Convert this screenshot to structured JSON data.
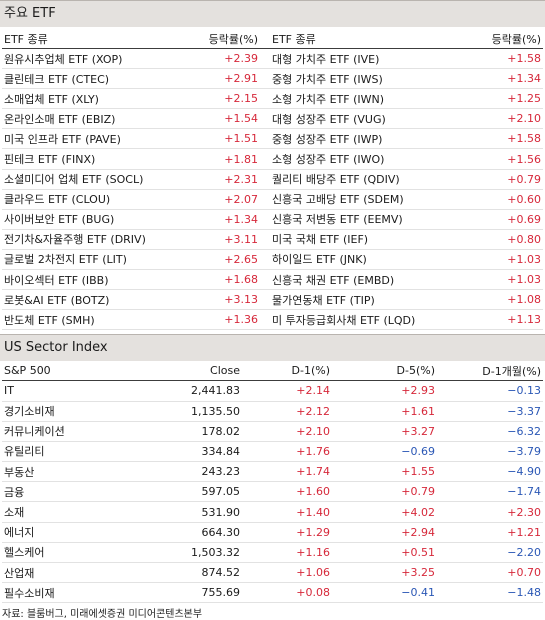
{
  "etf_section": {
    "title": "주요 ETF",
    "headers": {
      "name_left": "ETF 종류",
      "change_left": "등락률(%)",
      "name_right": "ETF 종류",
      "change_right": "등락률(%)"
    },
    "rows": [
      {
        "left_name": "원유시추업체 ETF (XOP)",
        "left_change": "+2.39",
        "right_name": "대형 가치주 ETF (IVE)",
        "right_change": "+1.58"
      },
      {
        "left_name": "클린테크 ETF (CTEC)",
        "left_change": "+2.91",
        "right_name": "중형 가치주 ETF (IWS)",
        "right_change": "+1.34"
      },
      {
        "left_name": "소매업체 ETF (XLY)",
        "left_change": "+2.15",
        "right_name": "소형 가치주 ETF (IWN)",
        "right_change": "+1.25"
      },
      {
        "left_name": "온라인소매 ETF (EBIZ)",
        "left_change": "+1.54",
        "right_name": "대형 성장주 ETF (VUG)",
        "right_change": "+2.10"
      },
      {
        "left_name": "미국 인프라 ETF (PAVE)",
        "left_change": "+1.51",
        "right_name": "중형 성장주 ETF (IWP)",
        "right_change": "+1.58"
      },
      {
        "left_name": "핀테크 ETF (FINX)",
        "left_change": "+1.81",
        "right_name": "소형 성장주 ETF (IWO)",
        "right_change": "+1.56"
      },
      {
        "left_name": "소셜미디어 업체 ETF (SOCL)",
        "left_change": "+2.31",
        "right_name": "퀄리티 배당주 ETF (QDIV)",
        "right_change": "+0.79"
      },
      {
        "left_name": "클라우드 ETF (CLOU)",
        "left_change": "+2.07",
        "right_name": "신흥국 고배당 ETF (SDEM)",
        "right_change": "+0.60"
      },
      {
        "left_name": "사이버보안 ETF (BUG)",
        "left_change": "+1.34",
        "right_name": "신흥국 저변동 ETF (EEMV)",
        "right_change": "+0.69"
      },
      {
        "left_name": "전기차&자율주행 ETF (DRIV)",
        "left_change": "+3.11",
        "right_name": "미국 국채 ETF (IEF)",
        "right_change": "+0.80"
      },
      {
        "left_name": "글로벌 2차전지 ETF (LIT)",
        "left_change": "+2.65",
        "right_name": "하이일드 ETF (JNK)",
        "right_change": "+1.03"
      },
      {
        "left_name": "바이오섹터 ETF (IBB)",
        "left_change": "+1.68",
        "right_name": "신흥국 채권 ETF (EMBD)",
        "right_change": "+1.03"
      },
      {
        "left_name": "로봇&AI ETF (BOTZ)",
        "left_change": "+3.13",
        "right_name": "물가연동채 ETF (TIP)",
        "right_change": "+1.08"
      },
      {
        "left_name": "반도체 ETF (SMH)",
        "left_change": "+1.36",
        "right_name": "미 투자등급회사채 ETF (LQD)",
        "right_change": "+1.13"
      }
    ]
  },
  "sector_section": {
    "title": "US Sector Index",
    "headers": {
      "name": "S&P 500",
      "close": "Close",
      "d1": "D-1(%)",
      "d5": "D-5(%)",
      "m1": "D-1개월(%)"
    },
    "rows": [
      {
        "name": "IT",
        "close": "2,441.83",
        "d1": "+2.14",
        "d5": "+2.93",
        "m1": "−0.13"
      },
      {
        "name": "경기소비재",
        "close": "1,135.50",
        "d1": "+2.12",
        "d5": "+1.61",
        "m1": "−3.37"
      },
      {
        "name": "커뮤니케이션",
        "close": "178.02",
        "d1": "+2.10",
        "d5": "+3.27",
        "m1": "−6.32"
      },
      {
        "name": "유틸리티",
        "close": "334.84",
        "d1": "+1.76",
        "d5": "−0.69",
        "m1": "−3.79"
      },
      {
        "name": "부동산",
        "close": "243.23",
        "d1": "+1.74",
        "d5": "+1.55",
        "m1": "−4.90"
      },
      {
        "name": "금융",
        "close": "597.05",
        "d1": "+1.60",
        "d5": "+0.79",
        "m1": "−1.74"
      },
      {
        "name": "소재",
        "close": "531.90",
        "d1": "+1.40",
        "d5": "+4.02",
        "m1": "+2.30"
      },
      {
        "name": "에너지",
        "close": "664.30",
        "d1": "+1.29",
        "d5": "+2.94",
        "m1": "+1.21"
      },
      {
        "name": "헬스케어",
        "close": "1,503.32",
        "d1": "+1.16",
        "d5": "+0.51",
        "m1": "−2.20"
      },
      {
        "name": "산업재",
        "close": "874.52",
        "d1": "+1.06",
        "d5": "+3.25",
        "m1": "+0.70"
      },
      {
        "name": "필수소비재",
        "close": "755.69",
        "d1": "+0.08",
        "d5": "−0.41",
        "m1": "−1.48"
      }
    ]
  },
  "source": "자료: 블룸버그, 미래에셋증권 미디어콘텐츠본부",
  "colors": {
    "positive": "#d6283a",
    "negative": "#2a57b5",
    "header_band": "#e4e1de"
  }
}
